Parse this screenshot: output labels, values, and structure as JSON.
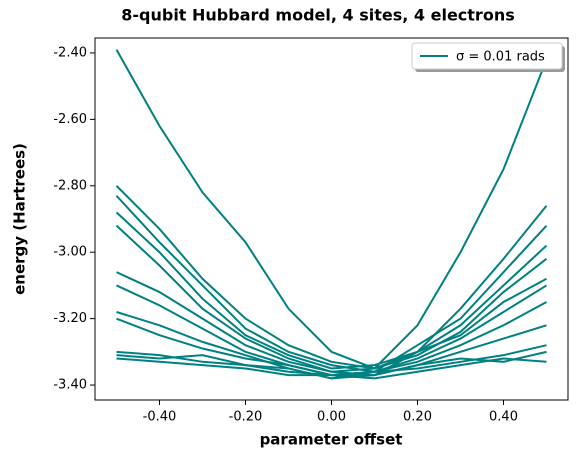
{
  "chart_data": {
    "type": "line",
    "title": "8-qubit Hubbard model, 4 sites, 4 electrons",
    "xlabel": "parameter offset",
    "ylabel": "energy (Hartrees)",
    "legend": "σ = 0.01 rads",
    "legend_position": "upper right",
    "color": "#008080",
    "x": [
      -0.5,
      -0.4,
      -0.3,
      -0.2,
      -0.1,
      0,
      0.1,
      0.2,
      0.3,
      0.4,
      0.5
    ],
    "series": [
      {
        "values": [
          -2.39,
          -2.62,
          -2.82,
          -2.97,
          -3.17,
          -3.3,
          -3.35,
          -3.22,
          -3.0,
          -2.75,
          -2.42
        ]
      },
      {
        "values": [
          -2.8,
          -2.93,
          -3.08,
          -3.2,
          -3.28,
          -3.33,
          -3.35,
          -3.3,
          -3.17,
          -3.02,
          -2.86
        ]
      },
      {
        "values": [
          -2.83,
          -2.97,
          -3.1,
          -3.23,
          -3.3,
          -3.34,
          -3.36,
          -3.28,
          -3.2,
          -3.06,
          -2.92
        ]
      },
      {
        "values": [
          -2.88,
          -3.0,
          -3.14,
          -3.25,
          -3.31,
          -3.35,
          -3.34,
          -3.3,
          -3.22,
          -3.1,
          -2.98
        ]
      },
      {
        "values": [
          -2.92,
          -3.04,
          -3.17,
          -3.26,
          -3.32,
          -3.36,
          -3.35,
          -3.31,
          -3.24,
          -3.12,
          -3.02
        ]
      },
      {
        "values": [
          -3.06,
          -3.12,
          -3.2,
          -3.28,
          -3.33,
          -3.36,
          -3.37,
          -3.3,
          -3.25,
          -3.15,
          -3.08
        ]
      },
      {
        "values": [
          -3.1,
          -3.16,
          -3.23,
          -3.3,
          -3.34,
          -3.37,
          -3.36,
          -3.32,
          -3.26,
          -3.18,
          -3.1
        ]
      },
      {
        "values": [
          -3.18,
          -3.22,
          -3.27,
          -3.31,
          -3.35,
          -3.38,
          -3.36,
          -3.33,
          -3.28,
          -3.22,
          -3.15
        ]
      },
      {
        "values": [
          -3.2,
          -3.25,
          -3.29,
          -3.32,
          -3.34,
          -3.37,
          -3.37,
          -3.34,
          -3.3,
          -3.26,
          -3.22
        ]
      },
      {
        "values": [
          -3.3,
          -3.31,
          -3.33,
          -3.34,
          -3.36,
          -3.37,
          -3.36,
          -3.35,
          -3.33,
          -3.31,
          -3.28
        ]
      },
      {
        "values": [
          -3.31,
          -3.32,
          -3.31,
          -3.34,
          -3.35,
          -3.38,
          -3.37,
          -3.34,
          -3.32,
          -3.33,
          -3.3
        ]
      },
      {
        "values": [
          -3.32,
          -3.33,
          -3.34,
          -3.35,
          -3.37,
          -3.37,
          -3.38,
          -3.36,
          -3.34,
          -3.32,
          -3.33
        ]
      }
    ],
    "xlim": [
      -0.55,
      0.55
    ],
    "xticks": [
      {
        "value": -0.4,
        "label": "-0.40"
      },
      {
        "value": -0.2,
        "label": "-0.20"
      },
      {
        "value": 0,
        "label": "0.00"
      },
      {
        "value": 0.2,
        "label": "0.20"
      },
      {
        "value": 0.4,
        "label": "0.40"
      }
    ],
    "ylim": [
      -3.445,
      -2.355
    ],
    "yticks": [
      {
        "value": -3.4,
        "label": "-3.40"
      },
      {
        "value": -3.2,
        "label": "-3.20"
      },
      {
        "value": -3.0,
        "label": "-3.00"
      },
      {
        "value": -2.8,
        "label": "-2.80"
      },
      {
        "value": -2.6,
        "label": "-2.60"
      },
      {
        "value": -2.4,
        "label": "-2.40"
      }
    ]
  }
}
